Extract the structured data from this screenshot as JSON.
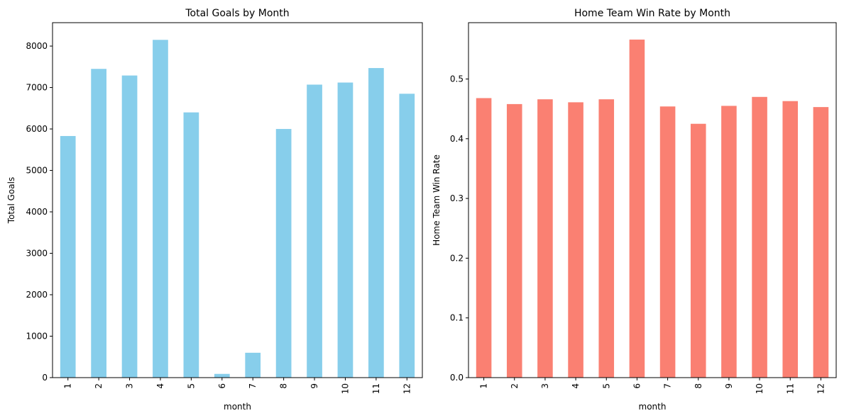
{
  "chart_data": [
    {
      "type": "bar",
      "title": "Total Goals by Month",
      "xlabel": "month",
      "ylabel": "Total Goals",
      "categories": [
        "1",
        "2",
        "3",
        "4",
        "5",
        "6",
        "7",
        "8",
        "9",
        "10",
        "11",
        "12"
      ],
      "values": [
        5830,
        7450,
        7290,
        8150,
        6400,
        90,
        600,
        6000,
        7070,
        7120,
        7470,
        6850
      ],
      "ylim": [
        0,
        8565
      ],
      "yticks": [
        0,
        1000,
        2000,
        3000,
        4000,
        5000,
        6000,
        7000,
        8000
      ],
      "ytick_labels": [
        "0",
        "1000",
        "2000",
        "3000",
        "4000",
        "5000",
        "6000",
        "7000",
        "8000"
      ],
      "color": "#87ceeb",
      "grid": false,
      "legend": "none"
    },
    {
      "type": "bar",
      "title": "Home Team Win Rate by Month",
      "xlabel": "month",
      "ylabel": "Home Team Win Rate",
      "categories": [
        "1",
        "2",
        "3",
        "4",
        "5",
        "6",
        "7",
        "8",
        "9",
        "10",
        "11",
        "12"
      ],
      "values": [
        0.468,
        0.458,
        0.466,
        0.461,
        0.466,
        0.566,
        0.454,
        0.425,
        0.455,
        0.47,
        0.463,
        0.453
      ],
      "ylim": [
        0,
        0.5943
      ],
      "yticks": [
        0.0,
        0.1,
        0.2,
        0.3,
        0.4,
        0.5
      ],
      "ytick_labels": [
        "0.0",
        "0.1",
        "0.2",
        "0.3",
        "0.4",
        "0.5"
      ],
      "color": "#fa8072",
      "grid": false,
      "legend": "none"
    }
  ]
}
